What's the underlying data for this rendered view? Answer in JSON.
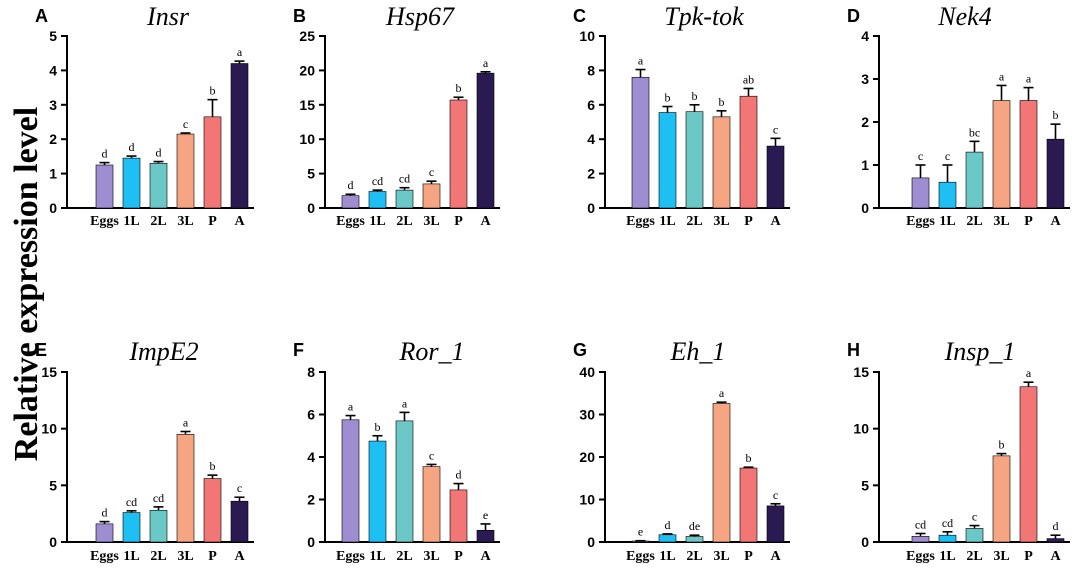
{
  "figure_ylabel": "Relative expression level",
  "chart_data": [
    {
      "type": "bar",
      "panel": "A",
      "title": "Insr",
      "categories": [
        "Eggs",
        "1L",
        "2L",
        "3L",
        "P",
        "A"
      ],
      "values": [
        1.25,
        1.45,
        1.3,
        2.15,
        2.65,
        4.2
      ],
      "errors": [
        0.07,
        0.06,
        0.05,
        0.03,
        0.5,
        0.07
      ],
      "labels": [
        "d",
        "d",
        "d",
        "c",
        "b",
        "a"
      ],
      "ylim": [
        0,
        5
      ],
      "yticks": [
        0,
        1,
        2,
        3,
        4,
        5
      ]
    },
    {
      "type": "bar",
      "panel": "B",
      "title": "Hsp67",
      "categories": [
        "Eggs",
        "1L",
        "2L",
        "3L",
        "P",
        "A"
      ],
      "values": [
        1.8,
        2.4,
        2.6,
        3.5,
        15.7,
        19.6
      ],
      "errors": [
        0.2,
        0.2,
        0.35,
        0.4,
        0.4,
        0.2
      ],
      "labels": [
        "d",
        "cd",
        "cd",
        "c",
        "b",
        "a"
      ],
      "ylim": [
        0,
        25
      ],
      "yticks": [
        0,
        5,
        10,
        15,
        20,
        25
      ]
    },
    {
      "type": "bar",
      "panel": "C",
      "title": "Tpk-tok",
      "categories": [
        "Eggs",
        "1L",
        "2L",
        "3L",
        "P",
        "A"
      ],
      "values": [
        7.6,
        5.55,
        5.6,
        5.3,
        6.5,
        3.6
      ],
      "errors": [
        0.45,
        0.35,
        0.4,
        0.35,
        0.45,
        0.45
      ],
      "labels": [
        "a",
        "b",
        "b",
        "b",
        "ab",
        "c"
      ],
      "ylim": [
        0,
        10
      ],
      "yticks": [
        0,
        2,
        4,
        6,
        8,
        10
      ]
    },
    {
      "type": "bar",
      "panel": "D",
      "title": "Nek4",
      "categories": [
        "Eggs",
        "1L",
        "2L",
        "3L",
        "P",
        "A"
      ],
      "values": [
        0.7,
        0.6,
        1.3,
        2.5,
        2.5,
        1.6
      ],
      "errors": [
        0.3,
        0.4,
        0.25,
        0.35,
        0.3,
        0.35
      ],
      "labels": [
        "c",
        "c",
        "bc",
        "a",
        "a",
        "b"
      ],
      "ylim": [
        0,
        4
      ],
      "yticks": [
        0,
        1,
        2,
        3,
        4
      ]
    },
    {
      "type": "bar",
      "panel": "E",
      "title": "ImpE2",
      "categories": [
        "Eggs",
        "1L",
        "2L",
        "3L",
        "P",
        "A"
      ],
      "values": [
        1.6,
        2.6,
        2.8,
        9.5,
        5.6,
        3.6
      ],
      "errors": [
        0.2,
        0.15,
        0.3,
        0.25,
        0.3,
        0.35
      ],
      "labels": [
        "d",
        "cd",
        "cd",
        "a",
        "b",
        "c"
      ],
      "ylim": [
        0,
        15
      ],
      "yticks": [
        0,
        5,
        10,
        15
      ]
    },
    {
      "type": "bar",
      "panel": "F",
      "title": "Ror_1",
      "categories": [
        "Eggs",
        "1L",
        "2L",
        "3L",
        "P",
        "A"
      ],
      "values": [
        5.75,
        4.75,
        5.7,
        3.55,
        2.45,
        0.55
      ],
      "errors": [
        0.2,
        0.25,
        0.4,
        0.1,
        0.3,
        0.3
      ],
      "labels": [
        "a",
        "b",
        "a",
        "c",
        "d",
        "e"
      ],
      "ylim": [
        0,
        8
      ],
      "yticks": [
        0,
        2,
        4,
        6,
        8
      ]
    },
    {
      "type": "bar",
      "panel": "G",
      "title": "Eh_1",
      "categories": [
        "Eggs",
        "1L",
        "2L",
        "3L",
        "P",
        "A"
      ],
      "values": [
        0.2,
        1.7,
        1.3,
        32.6,
        17.4,
        8.5
      ],
      "errors": [
        0.1,
        0.2,
        0.3,
        0.3,
        0.2,
        0.5
      ],
      "labels": [
        "e",
        "d",
        "de",
        "a",
        "b",
        "c"
      ],
      "ylim": [
        0,
        40
      ],
      "yticks": [
        0,
        10,
        20,
        30,
        40
      ]
    },
    {
      "type": "bar",
      "panel": "H",
      "title": "Insp_1",
      "categories": [
        "Eggs",
        "1L",
        "2L",
        "3L",
        "P",
        "A"
      ],
      "values": [
        0.5,
        0.6,
        1.2,
        7.6,
        13.7,
        0.3
      ],
      "errors": [
        0.25,
        0.3,
        0.25,
        0.2,
        0.4,
        0.3
      ],
      "labels": [
        "cd",
        "cd",
        "c",
        "b",
        "a",
        "d"
      ],
      "ylim": [
        0,
        15
      ],
      "yticks": [
        0,
        5,
        10,
        15
      ]
    }
  ],
  "colors": [
    "#9F8DD2",
    "#1EC0F4",
    "#6CC7C7",
    "#F6A582",
    "#F37676",
    "#2B1A51"
  ]
}
